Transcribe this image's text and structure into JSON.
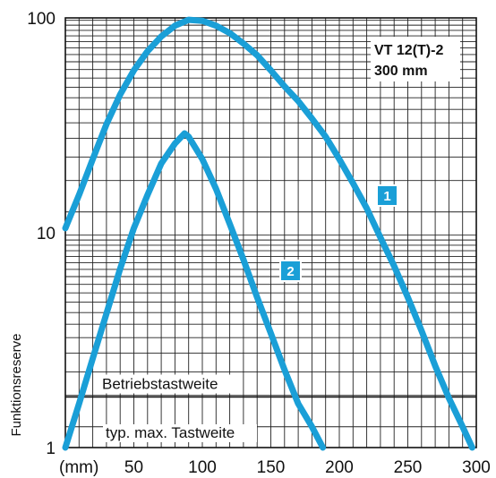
{
  "chart_data": {
    "type": "line",
    "title": "VT 12(T)-2",
    "subtitle": "300 mm",
    "xlabel": "(mm)",
    "ylabel": "Funktionsreserve",
    "x_ticks": [
      50,
      100,
      150,
      200,
      250,
      300
    ],
    "y_ticks": [
      1,
      10,
      100
    ],
    "xlim": [
      0,
      300
    ],
    "ylim": [
      1,
      100
    ],
    "y_scale": "log",
    "grid": true,
    "series": [
      {
        "name": "1",
        "color": "#1a9fd7",
        "points": [
          [
            0,
            10.5
          ],
          [
            10,
            15
          ],
          [
            20,
            22
          ],
          [
            30,
            32
          ],
          [
            40,
            44
          ],
          [
            50,
            57
          ],
          [
            60,
            70
          ],
          [
            70,
            82
          ],
          [
            80,
            92
          ],
          [
            90,
            98
          ],
          [
            100,
            97
          ],
          [
            110,
            92
          ],
          [
            120,
            85
          ],
          [
            130,
            76
          ],
          [
            140,
            67
          ],
          [
            150,
            57
          ],
          [
            160,
            48
          ],
          [
            170,
            41
          ],
          [
            180,
            34
          ],
          [
            190,
            28
          ],
          [
            200,
            22
          ],
          [
            210,
            17
          ],
          [
            220,
            13
          ],
          [
            230,
            9.5
          ],
          [
            240,
            7
          ],
          [
            250,
            5
          ],
          [
            260,
            3.5
          ],
          [
            270,
            2.4
          ],
          [
            280,
            1.7
          ],
          [
            290,
            1.25
          ],
          [
            297,
            1
          ]
        ]
      },
      {
        "name": "2",
        "color": "#1a9fd7",
        "points": [
          [
            0,
            1
          ],
          [
            10,
            1.6
          ],
          [
            20,
            2.6
          ],
          [
            30,
            4.2
          ],
          [
            40,
            6.8
          ],
          [
            50,
            10.5
          ],
          [
            60,
            15
          ],
          [
            70,
            21
          ],
          [
            80,
            26
          ],
          [
            87,
            29
          ],
          [
            90,
            28
          ],
          [
            100,
            22
          ],
          [
            110,
            16
          ],
          [
            120,
            11
          ],
          [
            130,
            7.5
          ],
          [
            140,
            5
          ],
          [
            150,
            3.4
          ],
          [
            160,
            2.3
          ],
          [
            170,
            1.6
          ],
          [
            180,
            1.25
          ],
          [
            188,
            1
          ]
        ]
      }
    ],
    "annotations": [
      {
        "text": "Betriebstastweite",
        "y": 1.72
      },
      {
        "text": "typ. max. Tastweite",
        "y": 1
      }
    ]
  }
}
